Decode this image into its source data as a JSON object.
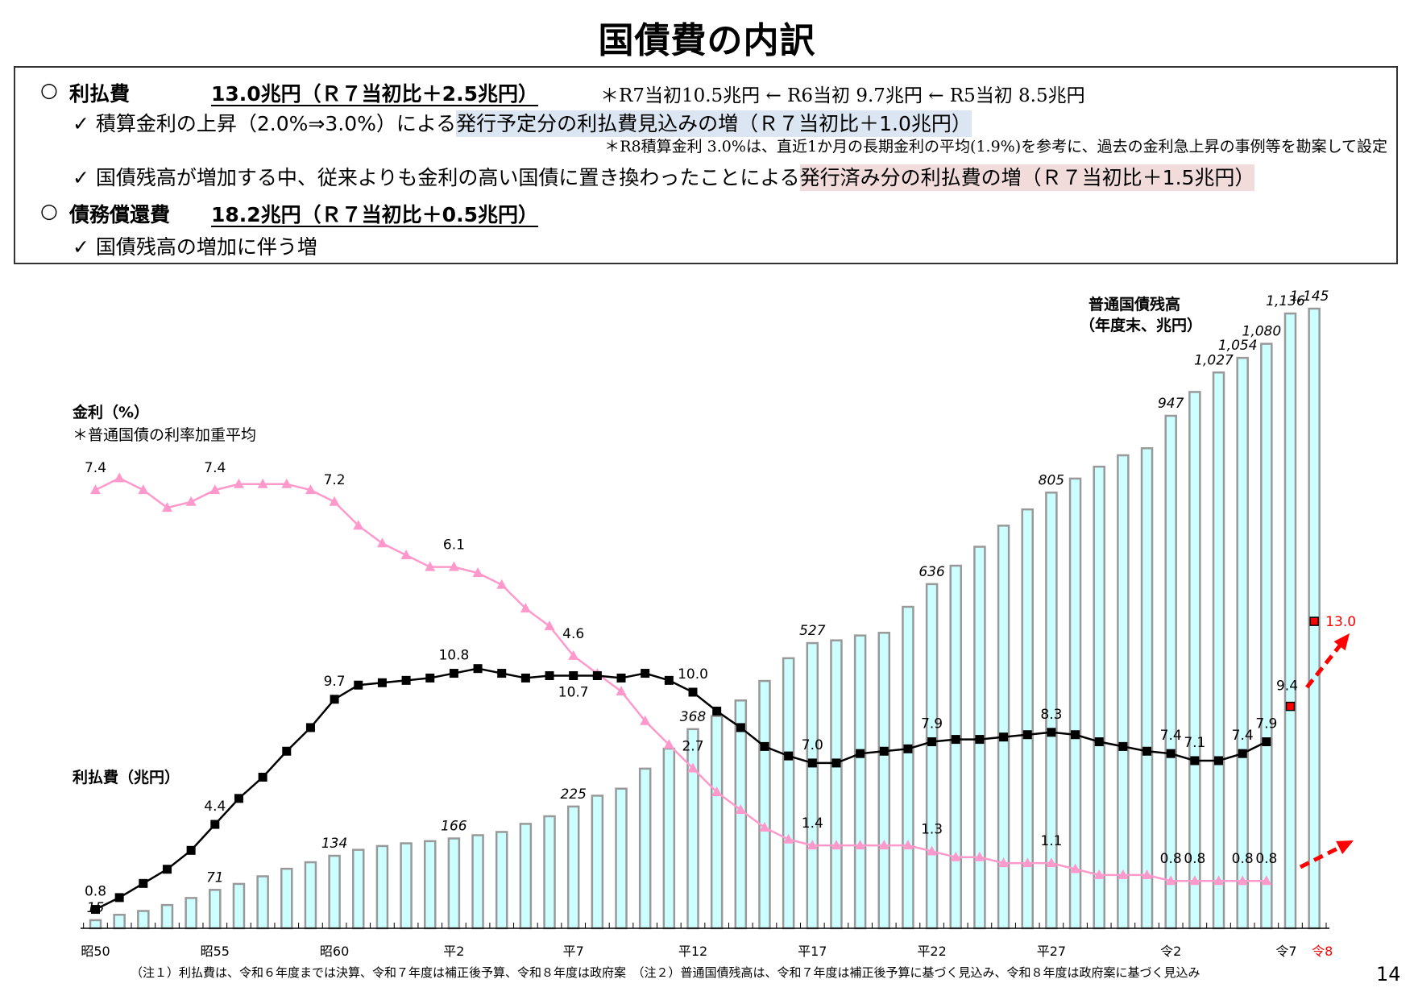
{
  "title": "国債費の内訳",
  "summary": {
    "interest": {
      "bullet": "○",
      "label": "利払費",
      "amount": "13.0兆円（Ｒ７当初比＋2.5兆円）",
      "history": "＊R7当初10.5兆円 ← R6当初 9.7兆円 ← R5当初 8.5兆円",
      "point1_prefix": "✓ 積算金利の上昇（2.0%⇒3.0%）による",
      "point1_highlight": "発行予定分の利払費見込みの増（Ｒ７当初比＋1.0兆円）",
      "point1_note": "＊R8積算金利 3.0%は、直近1か月の長期金利の平均(1.9%)を参考に、過去の金利急上昇の事例等を勘案して設定",
      "point2_prefix": "✓ 国債残高が増加する中、従来よりも金利の高い国債に置き換わったことによる",
      "point2_highlight": "発行済み分の利払費の増（Ｒ７当初比＋1.5兆円）"
    },
    "redemption": {
      "bullet": "○",
      "label": "債務償還費",
      "amount": "18.2兆円（Ｒ７当初比＋0.5兆円）",
      "point1": "✓ 国債残高の増加に伴う増"
    }
  },
  "colors": {
    "bar_fill": "#ccffff",
    "bar_stroke": "#999999",
    "interest_payment": "#000000",
    "interest_rate": "#ff99cc",
    "projection": "#ff0000",
    "highlight_blue": "#dce6f2",
    "highlight_pink": "#f2dcdb"
  },
  "chart_data": {
    "type": "bar+line",
    "x_tick_labels": [
      "昭50",
      "昭55",
      "昭60",
      "平2",
      "平7",
      "平12",
      "平17",
      "平22",
      "平27",
      "令2",
      "令7",
      "令8"
    ],
    "x_tick_label_highlight": "令8",
    "axis_labels": {
      "rate": "金利（%）",
      "rate_note": "＊普通国債の利率加重平均",
      "interest": "利払費（兆円）",
      "debt_line1": "普通国債残高",
      "debt_line2": "（年度末、兆円）"
    },
    "series": [
      {
        "name": "普通国債残高",
        "type": "bar",
        "values": [
          15,
          25,
          32,
          43,
          56,
          71,
          82,
          96,
          110,
          122,
          134,
          145,
          152,
          157,
          161,
          166,
          172,
          178,
          193,
          207,
          225,
          245,
          258,
          295,
          332,
          368,
          392,
          421,
          457,
          499,
          527,
          532,
          541,
          546,
          594,
          636,
          670,
          705,
          744,
          774,
          805,
          831,
          853,
          874,
          887,
          947,
          991,
          1027,
          1054,
          1080,
          1136,
          1145
        ],
        "labels": {
          "0": "15",
          "5": "71",
          "10": "134",
          "15": "166",
          "20": "225",
          "25": "368",
          "30": "527",
          "35": "636",
          "40": "805",
          "45": "947",
          "47": "1,027",
          "48": "1,054",
          "49": "1,080",
          "50": "1,136",
          "51": "1,145"
        }
      },
      {
        "name": "利払費",
        "type": "line",
        "values": [
          0.8,
          1.3,
          1.9,
          2.5,
          3.3,
          4.4,
          5.5,
          6.4,
          7.5,
          8.5,
          9.7,
          10.3,
          10.4,
          10.5,
          10.6,
          10.8,
          11.0,
          10.8,
          10.6,
          10.7,
          10.7,
          10.7,
          10.6,
          10.8,
          10.5,
          10.0,
          9.2,
          8.5,
          7.7,
          7.3,
          7.0,
          7.0,
          7.4,
          7.5,
          7.6,
          7.9,
          8.0,
          8.0,
          8.1,
          8.2,
          8.3,
          8.2,
          7.9,
          7.7,
          7.5,
          7.4,
          7.1,
          7.1,
          7.4,
          7.9
        ],
        "labels": {
          "0": "0.8",
          "5": "4.4",
          "10": "9.7",
          "15": "10.8",
          "20": "10.7",
          "25": "10.0",
          "30": "7.0",
          "35": "7.9",
          "40": "8.3",
          "45": "7.4",
          "46": "7.1",
          "48": "7.4",
          "49": "7.9"
        }
      },
      {
        "name": "利払費（令7・令8）",
        "type": "points",
        "values": {
          "50": 9.4,
          "51": 13.0
        },
        "labels": {
          "50": "9.4",
          "51": "13.0"
        }
      },
      {
        "name": "金利",
        "type": "line",
        "values": [
          7.4,
          7.6,
          7.4,
          7.1,
          7.2,
          7.4,
          7.5,
          7.5,
          7.5,
          7.4,
          7.2,
          6.8,
          6.5,
          6.3,
          6.1,
          6.1,
          6.0,
          5.8,
          5.4,
          5.1,
          4.6,
          4.3,
          4.0,
          3.5,
          3.1,
          2.7,
          2.3,
          2.0,
          1.7,
          1.5,
          1.4,
          1.4,
          1.4,
          1.4,
          1.4,
          1.3,
          1.2,
          1.2,
          1.1,
          1.1,
          1.1,
          1.0,
          0.9,
          0.9,
          0.9,
          0.8,
          0.8,
          0.8,
          0.8,
          0.8
        ],
        "labels": {
          "0": "7.4",
          "5": "7.4",
          "10": "7.2",
          "15": "6.1",
          "20": "4.6",
          "25": "2.7",
          "30": "1.4",
          "35": "1.3",
          "40": "1.1",
          "45": "0.8",
          "46": "0.8",
          "48": "0.8",
          "49": "0.8"
        }
      }
    ]
  },
  "footnote": "（注１）利払費は、令和６年度までは決算、令和７年度は補正後予算、令和８年度は政府案　（注２）普通国債残高は、令和７年度は補正後予算に基づく見込み、令和８年度は政府案に基づく見込み",
  "page_number": "14"
}
